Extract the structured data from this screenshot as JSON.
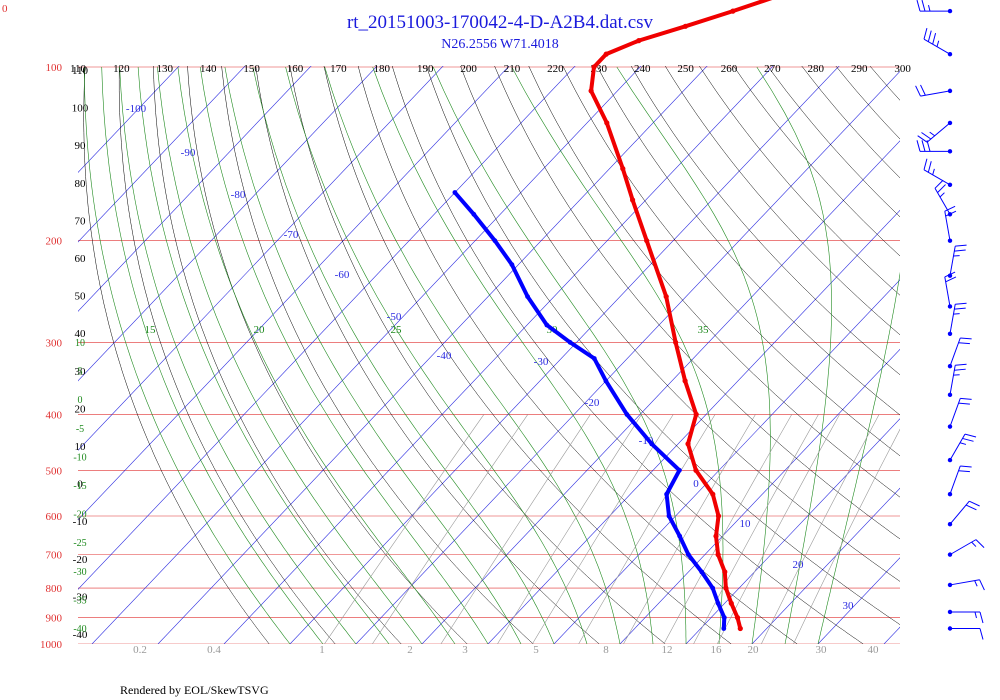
{
  "header": {
    "title": "rt_20151003-170042-4-D-A2B4.dat.csv",
    "subtitle": "N26.2556 W71.4018",
    "corner_label": "0",
    "footer": "Rendered by EOL/SkewTSVG"
  },
  "colors": {
    "title": "#1a1adc",
    "isobar": "#e03030",
    "isotherm": "#2a2ae0",
    "dry_adiabat": "#000000",
    "moist_adiabat": "#1f8a1f",
    "mixing_ratio": "#999999",
    "temperature": "#f00000",
    "dewpoint": "#0000ff",
    "wind": "#0000ff"
  },
  "chart_data": {
    "type": "skew-t",
    "title": "rt_20151003-170042-4-D-A2B4.dat.csv",
    "subtitle": "N26.2556 W71.4018",
    "pressure_levels_hPa": [
      100,
      200,
      300,
      400,
      500,
      600,
      700,
      800,
      900,
      1000
    ],
    "isotherm_labels_C": [
      -100,
      -90,
      -80,
      -70,
      -60,
      -50,
      -40,
      -30,
      -20,
      -10,
      0,
      10,
      20,
      30
    ],
    "dry_adiabat_top_labels_K": [
      110,
      120,
      130,
      140,
      150,
      160,
      170,
      180,
      190,
      200,
      210,
      220,
      230,
      240,
      250,
      260,
      270,
      280,
      290,
      300
    ],
    "dry_adiabat_left_labels": [
      "110",
      "100",
      "90",
      "80",
      "70",
      "60",
      "50",
      "40",
      "30",
      "20",
      "10",
      "0",
      "-10",
      "-20",
      "-30",
      "-40"
    ],
    "moist_adiabat_labels_C": [
      15,
      20,
      25,
      30,
      35
    ],
    "moist_left_labels": [
      "10",
      "5",
      "0",
      "-5",
      "-10",
      "-15",
      "-20",
      "-25",
      "-30",
      "-35",
      "-40"
    ],
    "mixing_ratio_labels_gkg": [
      "0.2",
      "0.4",
      "1",
      "2",
      "3",
      "5",
      "8",
      "12",
      "16",
      "20",
      "30",
      "40"
    ],
    "temperature_profile": [
      {
        "p": 940,
        "t": 26.0
      },
      {
        "p": 900,
        "t": 24.0
      },
      {
        "p": 850,
        "t": 21.0
      },
      {
        "p": 800,
        "t": 18.0
      },
      {
        "p": 750,
        "t": 15.5
      },
      {
        "p": 700,
        "t": 12.0
      },
      {
        "p": 650,
        "t": 9.0
      },
      {
        "p": 600,
        "t": 6.5
      },
      {
        "p": 550,
        "t": 2.5
      },
      {
        "p": 500,
        "t": -3.5
      },
      {
        "p": 450,
        "t": -8.5
      },
      {
        "p": 400,
        "t": -11.5
      },
      {
        "p": 350,
        "t": -18.0
      },
      {
        "p": 300,
        "t": -25.0
      },
      {
        "p": 250,
        "t": -33.0
      },
      {
        "p": 200,
        "t": -44.0
      },
      {
        "p": 170,
        "t": -52.0
      },
      {
        "p": 150,
        "t": -58.0
      },
      {
        "p": 125,
        "t": -67.0
      },
      {
        "p": 110,
        "t": -74.0
      },
      {
        "p": 100,
        "t": -77.0
      },
      {
        "p": 95,
        "t": -77.0
      },
      {
        "p": 90,
        "t": -74.0
      },
      {
        "p": 85,
        "t": -69.0
      },
      {
        "p": 80,
        "t": -64.0
      },
      {
        "p": 75,
        "t": -59.0
      }
    ],
    "dewpoint_profile": [
      {
        "p": 940,
        "td": 23.5
      },
      {
        "p": 900,
        "td": 22.0
      },
      {
        "p": 850,
        "td": 19.0
      },
      {
        "p": 800,
        "td": 16.0
      },
      {
        "p": 750,
        "td": 12.0
      },
      {
        "p": 700,
        "td": 7.5
      },
      {
        "p": 650,
        "td": 3.5
      },
      {
        "p": 600,
        "td": -1.0
      },
      {
        "p": 550,
        "td": -4.5
      },
      {
        "p": 500,
        "td": -6.0
      },
      {
        "p": 450,
        "td": -14.0
      },
      {
        "p": 400,
        "td": -22.0
      },
      {
        "p": 350,
        "td": -30.0
      },
      {
        "p": 320,
        "td": -35.0
      },
      {
        "p": 300,
        "td": -41.0
      },
      {
        "p": 280,
        "td": -47.0
      },
      {
        "p": 250,
        "td": -54.0
      },
      {
        "p": 220,
        "td": -61.0
      },
      {
        "p": 200,
        "td": -67.0
      },
      {
        "p": 180,
        "td": -74.0
      },
      {
        "p": 165,
        "td": -80.0
      }
    ],
    "wind_barbs": [
      {
        "p": 80,
        "dir": 270,
        "kt": 25
      },
      {
        "p": 95,
        "dir": 300,
        "kt": 35
      },
      {
        "p": 110,
        "dir": 260,
        "kt": 20
      },
      {
        "p": 125,
        "dir": 230,
        "kt": 25
      },
      {
        "p": 140,
        "dir": 270,
        "kt": 30
      },
      {
        "p": 160,
        "dir": 300,
        "kt": 25
      },
      {
        "p": 180,
        "dir": 330,
        "kt": 25
      },
      {
        "p": 200,
        "dir": 350,
        "kt": 20
      },
      {
        "p": 230,
        "dir": 10,
        "kt": 25
      },
      {
        "p": 260,
        "dir": 350,
        "kt": 20
      },
      {
        "p": 290,
        "dir": 10,
        "kt": 25
      },
      {
        "p": 330,
        "dir": 20,
        "kt": 20
      },
      {
        "p": 370,
        "dir": 10,
        "kt": 25
      },
      {
        "p": 420,
        "dir": 20,
        "kt": 20
      },
      {
        "p": 480,
        "dir": 30,
        "kt": 25
      },
      {
        "p": 550,
        "dir": 20,
        "kt": 20
      },
      {
        "p": 620,
        "dir": 40,
        "kt": 20
      },
      {
        "p": 700,
        "dir": 60,
        "kt": 15
      },
      {
        "p": 790,
        "dir": 80,
        "kt": 15
      },
      {
        "p": 880,
        "dir": 90,
        "kt": 15
      },
      {
        "p": 940,
        "dir": 90,
        "kt": 10
      }
    ]
  }
}
